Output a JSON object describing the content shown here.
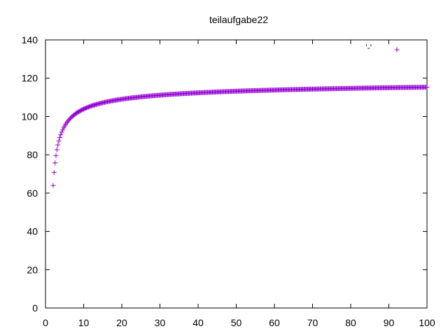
{
  "chart_data": {
    "type": "scatter",
    "title": "teilaufgabe22",
    "xlabel": "",
    "ylabel": "",
    "xlim": [
      0,
      100
    ],
    "ylim": [
      0,
      140
    ],
    "x_ticks": [
      0,
      10,
      20,
      30,
      40,
      50,
      60,
      70,
      80,
      90,
      100
    ],
    "y_ticks": [
      0,
      20,
      40,
      60,
      80,
      100,
      120,
      140
    ],
    "grid": false,
    "legend_position": "top-right",
    "marker": "+",
    "series": [
      {
        "name": "'-'",
        "color": "#9400d3",
        "function": "y = 2^(7 - 1/log2(x))",
        "x_start": 2,
        "x_end": 100,
        "x_step": 0.25
      }
    ]
  }
}
